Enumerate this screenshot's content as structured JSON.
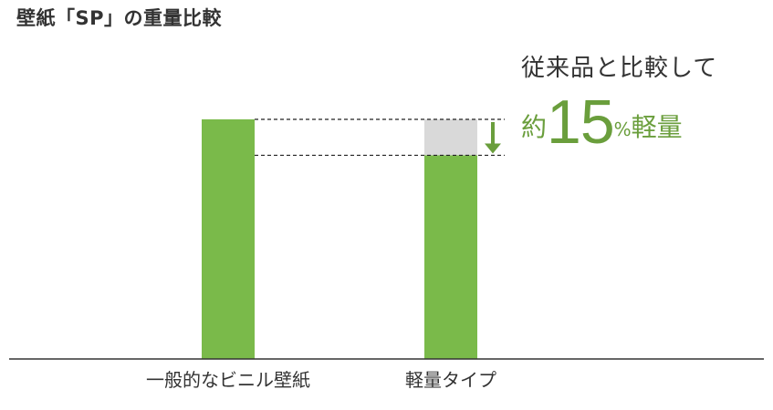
{
  "title": "壁紙「SP」の重量比較",
  "colors": {
    "bar": "#7aba4a",
    "reduction": "#d9d9d9",
    "accent": "#6a9e3c",
    "arrow": "#6a9e3c",
    "text": "#333333",
    "axis": "#333333"
  },
  "callout": {
    "line1": "従来品と比較して",
    "prefix": "約",
    "number": "15",
    "percent": "%",
    "suffix": "軽量",
    "arrow_icon": "down-arrow-icon"
  },
  "chart_data": {
    "type": "bar",
    "categories": [
      "一般的なビニル壁紙",
      "軽量タイプ"
    ],
    "values": [
      100,
      85
    ],
    "reduction": {
      "category": "軽量タイプ",
      "from": 100,
      "to": 85
    },
    "ylim": [
      0,
      100
    ],
    "grid": false,
    "legend": "none",
    "xlabel": "",
    "ylabel": ""
  }
}
